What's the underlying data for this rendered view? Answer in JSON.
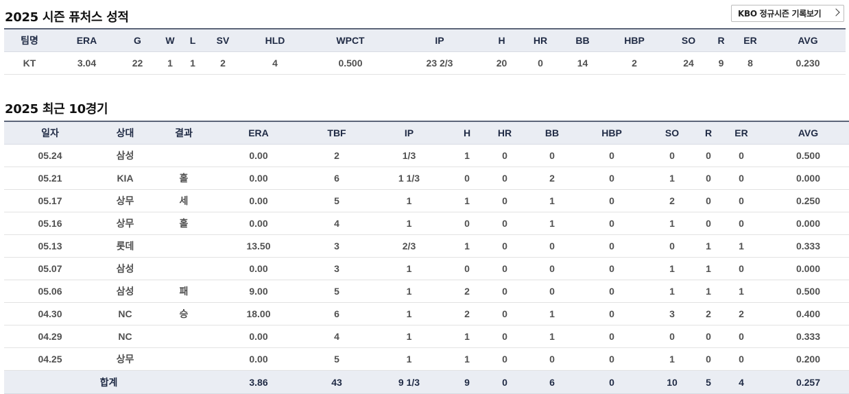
{
  "season_title": "2025 시즌 퓨처스 성적",
  "kbo_link_label": "KBO 정규시즌 기록보기",
  "season": {
    "headers": [
      "팀명",
      "ERA",
      "G",
      "W",
      "L",
      "SV",
      "HLD",
      "WPCT",
      "IP",
      "H",
      "HR",
      "BB",
      "HBP",
      "SO",
      "R",
      "ER",
      "AVG"
    ],
    "row": [
      "KT",
      "3.04",
      "22",
      "1",
      "1",
      "2",
      "4",
      "0.500",
      "23 2/3",
      "20",
      "0",
      "14",
      "2",
      "24",
      "9",
      "8",
      "0.230"
    ]
  },
  "recent_title": "2025 최근 10경기",
  "recent": {
    "headers": [
      "일자",
      "상대",
      "결과",
      "ERA",
      "TBF",
      "IP",
      "H",
      "HR",
      "BB",
      "HBP",
      "SO",
      "R",
      "ER",
      "AVG"
    ],
    "rows": [
      [
        "05.24",
        "삼성",
        "",
        "0.00",
        "2",
        "1/3",
        "1",
        "0",
        "0",
        "0",
        "0",
        "0",
        "0",
        "0.500"
      ],
      [
        "05.21",
        "KIA",
        "홀",
        "0.00",
        "6",
        "1 1/3",
        "0",
        "0",
        "2",
        "0",
        "1",
        "0",
        "0",
        "0.000"
      ],
      [
        "05.17",
        "상무",
        "세",
        "0.00",
        "5",
        "1",
        "1",
        "0",
        "1",
        "0",
        "2",
        "0",
        "0",
        "0.250"
      ],
      [
        "05.16",
        "상무",
        "홀",
        "0.00",
        "4",
        "1",
        "0",
        "0",
        "1",
        "0",
        "1",
        "0",
        "0",
        "0.000"
      ],
      [
        "05.13",
        "롯데",
        "",
        "13.50",
        "3",
        "2/3",
        "1",
        "0",
        "0",
        "0",
        "0",
        "1",
        "1",
        "0.333"
      ],
      [
        "05.07",
        "삼성",
        "",
        "0.00",
        "3",
        "1",
        "0",
        "0",
        "0",
        "0",
        "1",
        "1",
        "0",
        "0.000"
      ],
      [
        "05.06",
        "삼성",
        "패",
        "9.00",
        "5",
        "1",
        "2",
        "0",
        "0",
        "0",
        "1",
        "1",
        "1",
        "0.500"
      ],
      [
        "04.30",
        "NC",
        "승",
        "18.00",
        "6",
        "1",
        "2",
        "0",
        "1",
        "0",
        "3",
        "2",
        "2",
        "0.400"
      ],
      [
        "04.29",
        "NC",
        "",
        "0.00",
        "4",
        "1",
        "1",
        "0",
        "1",
        "0",
        "0",
        "0",
        "0",
        "0.333"
      ],
      [
        "04.25",
        "상무",
        "",
        "0.00",
        "5",
        "1",
        "1",
        "0",
        "0",
        "0",
        "1",
        "0",
        "0",
        "0.200"
      ]
    ],
    "total": {
      "label": "합계",
      "values": [
        "3.86",
        "43",
        "9 1/3",
        "9",
        "0",
        "6",
        "0",
        "10",
        "5",
        "4",
        "0.257"
      ]
    }
  }
}
